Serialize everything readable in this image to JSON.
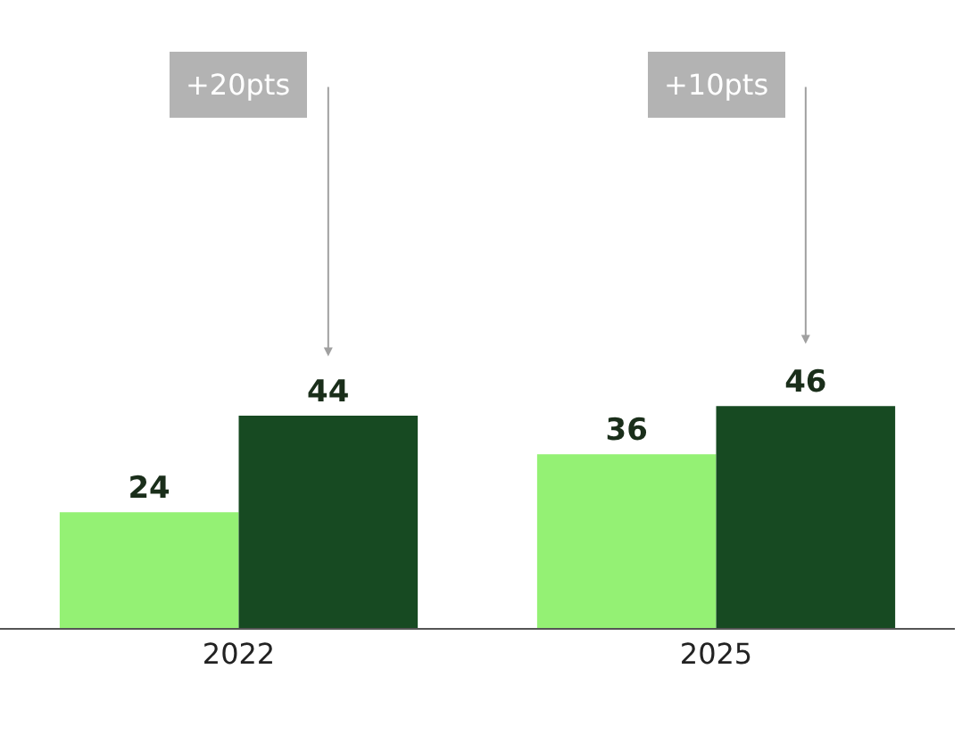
{
  "chart_data": {
    "type": "bar",
    "categories": [
      "2022",
      "2025"
    ],
    "series": [
      {
        "color": "#94f174",
        "values": [
          24,
          36
        ]
      },
      {
        "color": "#174a22",
        "values": [
          44,
          46
        ]
      }
    ],
    "data_labels": true,
    "annotations": [
      "+20pts",
      "+10pts"
    ]
  }
}
